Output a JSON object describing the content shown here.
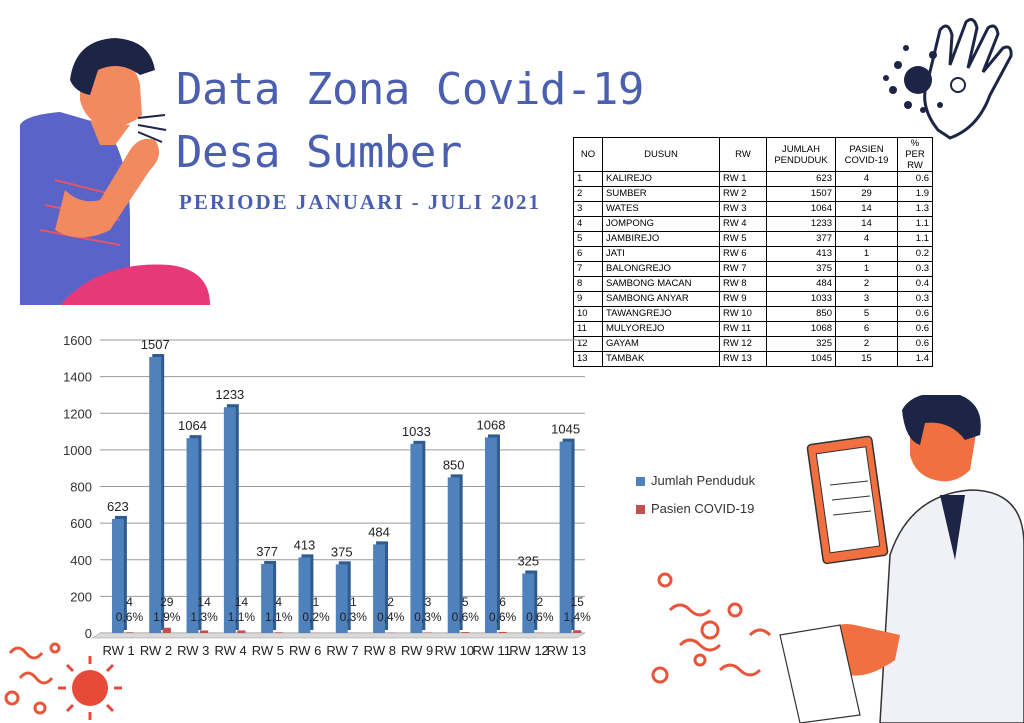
{
  "header": {
    "title_line1": "Data Zona Covid-19",
    "title_line2": "Desa Sumber",
    "period": "PERIODE JANUARI - JULI 2021"
  },
  "table": {
    "headers": [
      "NO",
      "DUSUN",
      "RW",
      "JUMLAH PENDUDUK",
      "PASIEN COVID-19",
      "% PER RW"
    ],
    "rows": [
      [
        "1",
        "KALIREJO",
        "RW 1",
        "623",
        "4",
        "0.6"
      ],
      [
        "2",
        "SUMBER",
        "RW 2",
        "1507",
        "29",
        "1.9"
      ],
      [
        "3",
        "WATES",
        "RW 3",
        "1064",
        "14",
        "1.3"
      ],
      [
        "4",
        "JOMPONG",
        "RW 4",
        "1233",
        "14",
        "1.1"
      ],
      [
        "5",
        "JAMBIREJO",
        "RW 5",
        "377",
        "4",
        "1.1"
      ],
      [
        "6",
        "JATI",
        "RW 6",
        "413",
        "1",
        "0.2"
      ],
      [
        "7",
        "BALONGREJO",
        "RW 7",
        "375",
        "1",
        "0.3"
      ],
      [
        "8",
        "SAMBONG MACAN",
        "RW 8",
        "484",
        "2",
        "0.4"
      ],
      [
        "9",
        "SAMBONG ANYAR",
        "RW 9",
        "1033",
        "3",
        "0.3"
      ],
      [
        "10",
        "TAWANGREJO",
        "RW 10",
        "850",
        "5",
        "0.6"
      ],
      [
        "11",
        "MULYOREJO",
        "RW 11",
        "1068",
        "6",
        "0.6"
      ],
      [
        "12",
        "GAYAM",
        "RW 12",
        "325",
        "2",
        "0.6"
      ],
      [
        "13",
        "TAMBAK",
        "RW 13",
        "1045",
        "15",
        "1.4"
      ]
    ]
  },
  "chart_data": {
    "type": "bar",
    "categories": [
      "RW 1",
      "RW 2",
      "RW 3",
      "RW 4",
      "RW 5",
      "RW 6",
      "RW 7",
      "RW 8",
      "RW 9",
      "RW 10",
      "RW 11",
      "RW 12",
      "RW 13"
    ],
    "series": [
      {
        "name": "Jumlah Penduduk",
        "color": "#4f81bd",
        "values": [
          623,
          1507,
          1064,
          1233,
          377,
          413,
          375,
          484,
          1033,
          850,
          1068,
          325,
          1045
        ]
      },
      {
        "name": "Pasien COVID-19",
        "color": "#c0504d",
        "values": [
          4,
          29,
          14,
          14,
          4,
          1,
          1,
          2,
          3,
          5,
          6,
          2,
          15
        ]
      }
    ],
    "patient_percent_labels": [
      "0,6%",
      "1,9%",
      "1,3%",
      "1,1%",
      "1,1%",
      "0,2%",
      "0,3%",
      "0,4%",
      "0,3%",
      "0,6%",
      "0,6%",
      "0,6%",
      "1,4%"
    ],
    "yticks": [
      0,
      200,
      400,
      600,
      800,
      1000,
      1200,
      1400,
      1600
    ],
    "ylim": [
      0,
      1600
    ],
    "grid": true,
    "legend": "right",
    "title": "",
    "xlabel": "",
    "ylabel": ""
  }
}
